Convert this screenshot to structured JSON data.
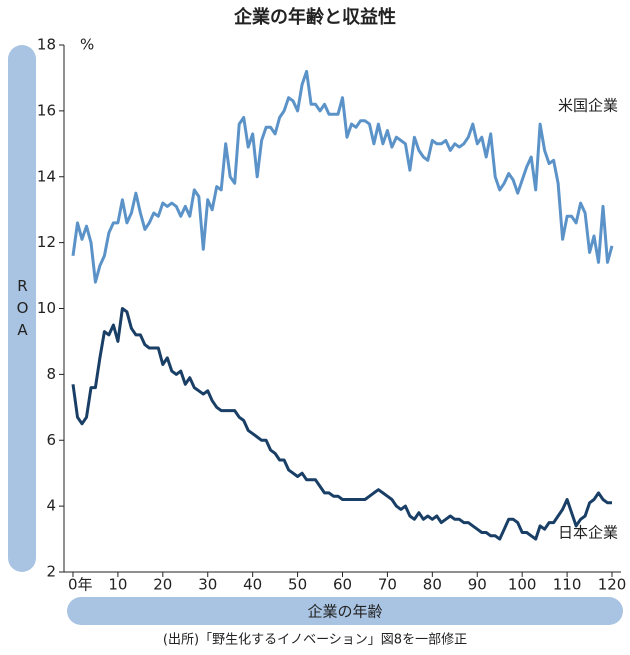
{
  "chart_data": {
    "type": "line",
    "title": "企業の年齢と収益性",
    "y_label": "ROA",
    "y_unit": "%",
    "x_label": "企業の年齢",
    "source": "(出所)「野生化するイノベーション」図8を一部修正",
    "x": [
      0,
      1,
      2,
      3,
      4,
      5,
      6,
      7,
      8,
      9,
      10,
      11,
      12,
      13,
      14,
      15,
      16,
      17,
      18,
      19,
      20,
      21,
      22,
      23,
      24,
      25,
      26,
      27,
      28,
      29,
      30,
      31,
      32,
      33,
      34,
      35,
      36,
      37,
      38,
      39,
      40,
      41,
      42,
      43,
      44,
      45,
      46,
      47,
      48,
      49,
      50,
      51,
      52,
      53,
      54,
      55,
      56,
      57,
      58,
      59,
      60,
      61,
      62,
      63,
      64,
      65,
      66,
      67,
      68,
      69,
      70,
      71,
      72,
      73,
      74,
      75,
      76,
      77,
      78,
      79,
      80,
      81,
      82,
      83,
      84,
      85,
      86,
      87,
      88,
      89,
      90,
      91,
      92,
      93,
      94,
      95,
      96,
      97,
      98,
      99,
      100,
      101,
      102,
      103,
      104,
      105,
      106,
      107,
      108,
      109,
      110,
      111,
      112,
      113,
      114,
      115,
      116,
      117,
      118,
      119,
      120
    ],
    "series": [
      {
        "name": "米国企業",
        "color": "#5b93c9",
        "values": [
          11.6,
          12.6,
          12.1,
          12.5,
          12.0,
          10.8,
          11.3,
          11.6,
          12.3,
          12.6,
          12.6,
          13.3,
          12.6,
          12.9,
          13.5,
          12.9,
          12.4,
          12.6,
          12.9,
          12.8,
          13.2,
          13.1,
          13.2,
          13.1,
          12.8,
          13.1,
          12.8,
          13.6,
          13.4,
          11.8,
          13.3,
          13.0,
          13.7,
          13.6,
          15.0,
          14.0,
          13.8,
          15.6,
          15.8,
          14.9,
          15.3,
          14.0,
          15.1,
          15.5,
          15.5,
          15.3,
          15.8,
          16.0,
          16.4,
          16.3,
          16.0,
          16.8,
          17.2,
          16.2,
          16.2,
          16.0,
          16.2,
          15.9,
          15.9,
          15.9,
          16.4,
          15.2,
          15.6,
          15.5,
          15.7,
          15.7,
          15.6,
          15.0,
          15.6,
          15.0,
          15.4,
          14.9,
          15.2,
          15.1,
          15.0,
          14.2,
          15.2,
          14.8,
          14.6,
          14.5,
          15.1,
          15.0,
          15.0,
          15.1,
          14.8,
          15.0,
          14.9,
          15.0,
          15.2,
          15.6,
          15.0,
          15.2,
          14.6,
          15.3,
          14.0,
          13.6,
          13.8,
          14.1,
          13.9,
          13.5,
          13.9,
          14.3,
          14.6,
          13.6,
          15.6,
          14.8,
          14.4,
          14.5,
          13.8,
          12.1,
          12.8,
          12.8,
          12.6,
          13.2,
          12.9,
          11.7,
          12.2,
          11.4,
          13.1,
          11.4,
          11.9
        ]
      },
      {
        "name": "日本企業",
        "color": "#1a3f66",
        "values": [
          7.7,
          6.7,
          6.5,
          6.7,
          7.6,
          7.6,
          8.5,
          9.3,
          9.2,
          9.5,
          9.0,
          10.0,
          9.9,
          9.4,
          9.2,
          9.2,
          8.9,
          8.8,
          8.8,
          8.8,
          8.3,
          8.5,
          8.1,
          8.0,
          8.1,
          7.7,
          7.9,
          7.6,
          7.5,
          7.4,
          7.5,
          7.2,
          7.0,
          6.9,
          6.9,
          6.9,
          6.9,
          6.7,
          6.6,
          6.3,
          6.2,
          6.1,
          6.0,
          6.0,
          5.7,
          5.6,
          5.4,
          5.4,
          5.1,
          5.0,
          4.9,
          5.0,
          4.8,
          4.8,
          4.8,
          4.6,
          4.4,
          4.4,
          4.3,
          4.3,
          4.2,
          4.2,
          4.2,
          4.2,
          4.2,
          4.2,
          4.3,
          4.4,
          4.5,
          4.4,
          4.3,
          4.2,
          4.0,
          3.9,
          4.0,
          3.7,
          3.6,
          3.8,
          3.6,
          3.7,
          3.6,
          3.7,
          3.5,
          3.6,
          3.7,
          3.6,
          3.6,
          3.5,
          3.5,
          3.4,
          3.3,
          3.2,
          3.2,
          3.1,
          3.1,
          3.0,
          3.3,
          3.6,
          3.6,
          3.5,
          3.2,
          3.2,
          3.1,
          3.0,
          3.4,
          3.3,
          3.5,
          3.5,
          3.7,
          3.9,
          4.2,
          3.8,
          3.4,
          3.6,
          3.7,
          4.1,
          4.2,
          4.4,
          4.2,
          4.1,
          4.1
        ]
      }
    ],
    "xlim": [
      -2,
      122
    ],
    "xticks": [
      {
        "value": 0,
        "label": "0年"
      },
      10,
      20,
      30,
      40,
      50,
      60,
      70,
      80,
      90,
      100,
      110,
      120
    ],
    "ylim": [
      2,
      18
    ],
    "yticks": [
      2,
      4,
      6,
      8,
      10,
      12,
      14,
      16,
      18
    ],
    "grid": false
  }
}
